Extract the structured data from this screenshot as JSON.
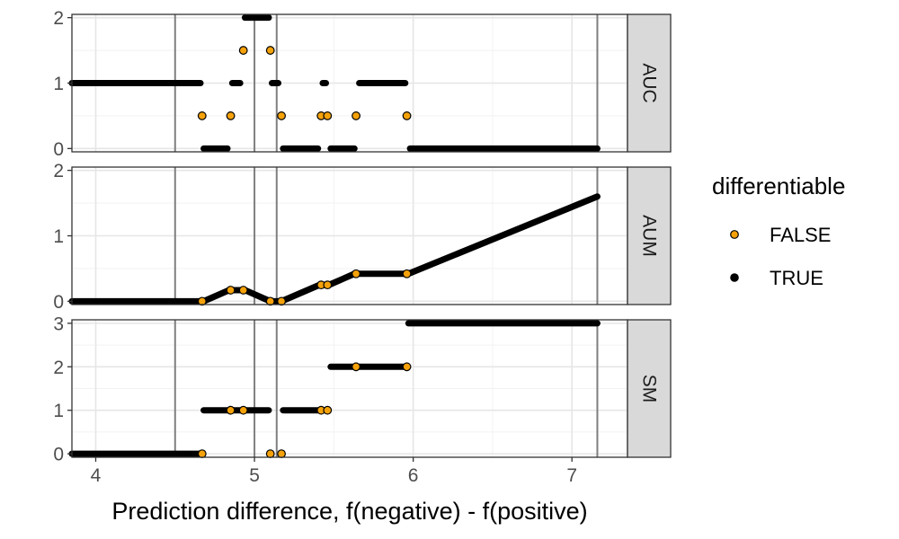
{
  "chart_data": {
    "type": "scatter",
    "xlabel": "Prediction difference, f(negative) - f(positive)",
    "xlim": [
      3.85,
      7.35
    ],
    "xticks": [
      "4",
      "5",
      "6",
      "7"
    ],
    "vlines": [
      4.5,
      5.0,
      5.14,
      7.16
    ],
    "legend": {
      "title": "differentiable",
      "position": "right",
      "entries": [
        {
          "label": "FALSE",
          "color": "#f5a20a"
        },
        {
          "label": "TRUE",
          "color": "#000000"
        }
      ]
    },
    "panels": [
      {
        "name": "AUC",
        "ylim": [
          -0.05,
          2.05
        ],
        "yticks": [
          "0",
          "1",
          "2"
        ],
        "true_segments": [
          {
            "x": [
              3.85,
              4.66
            ],
            "y": 1
          },
          {
            "x": [
              4.68,
              4.83
            ],
            "y": 0
          },
          {
            "x": [
              4.86,
              4.91
            ],
            "y": 1
          },
          {
            "x": [
              4.94,
              5.09
            ],
            "y": 2
          },
          {
            "x": [
              5.11,
              5.15
            ],
            "y": 1
          },
          {
            "x": [
              5.18,
              5.4
            ],
            "y": 0
          },
          {
            "x": [
              5.43,
              5.45
            ],
            "y": 1
          },
          {
            "x": [
              5.48,
              5.63
            ],
            "y": 0
          },
          {
            "x": [
              5.66,
              5.95
            ],
            "y": 1
          },
          {
            "x": [
              5.98,
              7.16
            ],
            "y": 0
          }
        ],
        "false_points": [
          {
            "x": 4.67,
            "y": 0.5
          },
          {
            "x": 4.85,
            "y": 0.5
          },
          {
            "x": 4.93,
            "y": 1.5
          },
          {
            "x": 5.1,
            "y": 1.5
          },
          {
            "x": 5.17,
            "y": 0.5
          },
          {
            "x": 5.42,
            "y": 0.5
          },
          {
            "x": 5.46,
            "y": 0.5
          },
          {
            "x": 5.64,
            "y": 0.5
          },
          {
            "x": 5.96,
            "y": 0.5
          }
        ]
      },
      {
        "name": "AUM",
        "ylim": [
          -0.05,
          2.05
        ],
        "yticks": [
          "0",
          "1",
          "2"
        ],
        "true_segments": [
          {
            "x": [
              3.85,
              4.66
            ],
            "y": 0
          },
          {
            "x": [
              4.68,
              4.84
            ],
            "y": [
              0,
              0.17
            ]
          },
          {
            "x": [
              4.86,
              4.92
            ],
            "y": 0.17
          },
          {
            "x": [
              4.94,
              5.09
            ],
            "y": [
              0.17,
              0.01
            ]
          },
          {
            "x": [
              5.11,
              5.16
            ],
            "y": 0
          },
          {
            "x": [
              5.18,
              5.41
            ],
            "y": [
              0.01,
              0.25
            ]
          },
          {
            "x": [
              5.43,
              5.45
            ],
            "y": 0.25
          },
          {
            "x": [
              5.47,
              5.63
            ],
            "y": [
              0.25,
              0.42
            ]
          },
          {
            "x": [
              5.65,
              5.95
            ],
            "y": 0.42
          },
          {
            "x": [
              5.97,
              7.16
            ],
            "y": [
              0.42,
              1.6
            ]
          }
        ],
        "false_points": [
          {
            "x": 4.67,
            "y": 0
          },
          {
            "x": 4.85,
            "y": 0.17
          },
          {
            "x": 4.93,
            "y": 0.17
          },
          {
            "x": 5.1,
            "y": 0
          },
          {
            "x": 5.17,
            "y": 0
          },
          {
            "x": 5.42,
            "y": 0.25
          },
          {
            "x": 5.46,
            "y": 0.25
          },
          {
            "x": 5.64,
            "y": 0.42
          },
          {
            "x": 5.96,
            "y": 0.42
          }
        ]
      },
      {
        "name": "SM",
        "ylim": [
          -0.08,
          3.08
        ],
        "yticks": [
          "0",
          "1",
          "2",
          "3"
        ],
        "true_segments": [
          {
            "x": [
              3.85,
              4.66
            ],
            "y": 0
          },
          {
            "x": [
              4.68,
              4.84
            ],
            "y": 1
          },
          {
            "x": [
              4.86,
              4.92
            ],
            "y": 1
          },
          {
            "x": [
              4.94,
              5.09
            ],
            "y": 1
          },
          {
            "x": [
              5.18,
              5.41
            ],
            "y": 1
          },
          {
            "x": [
              5.48,
              5.95
            ],
            "y": 2
          },
          {
            "x": [
              5.97,
              7.16
            ],
            "y": 3
          }
        ],
        "false_points": [
          {
            "x": 4.67,
            "y": 0
          },
          {
            "x": 4.85,
            "y": 1
          },
          {
            "x": 4.93,
            "y": 1
          },
          {
            "x": 5.1,
            "y": 0
          },
          {
            "x": 5.17,
            "y": 0
          },
          {
            "x": 5.42,
            "y": 1
          },
          {
            "x": 5.46,
            "y": 1
          },
          {
            "x": 5.64,
            "y": 2
          },
          {
            "x": 5.96,
            "y": 2
          }
        ]
      }
    ]
  }
}
